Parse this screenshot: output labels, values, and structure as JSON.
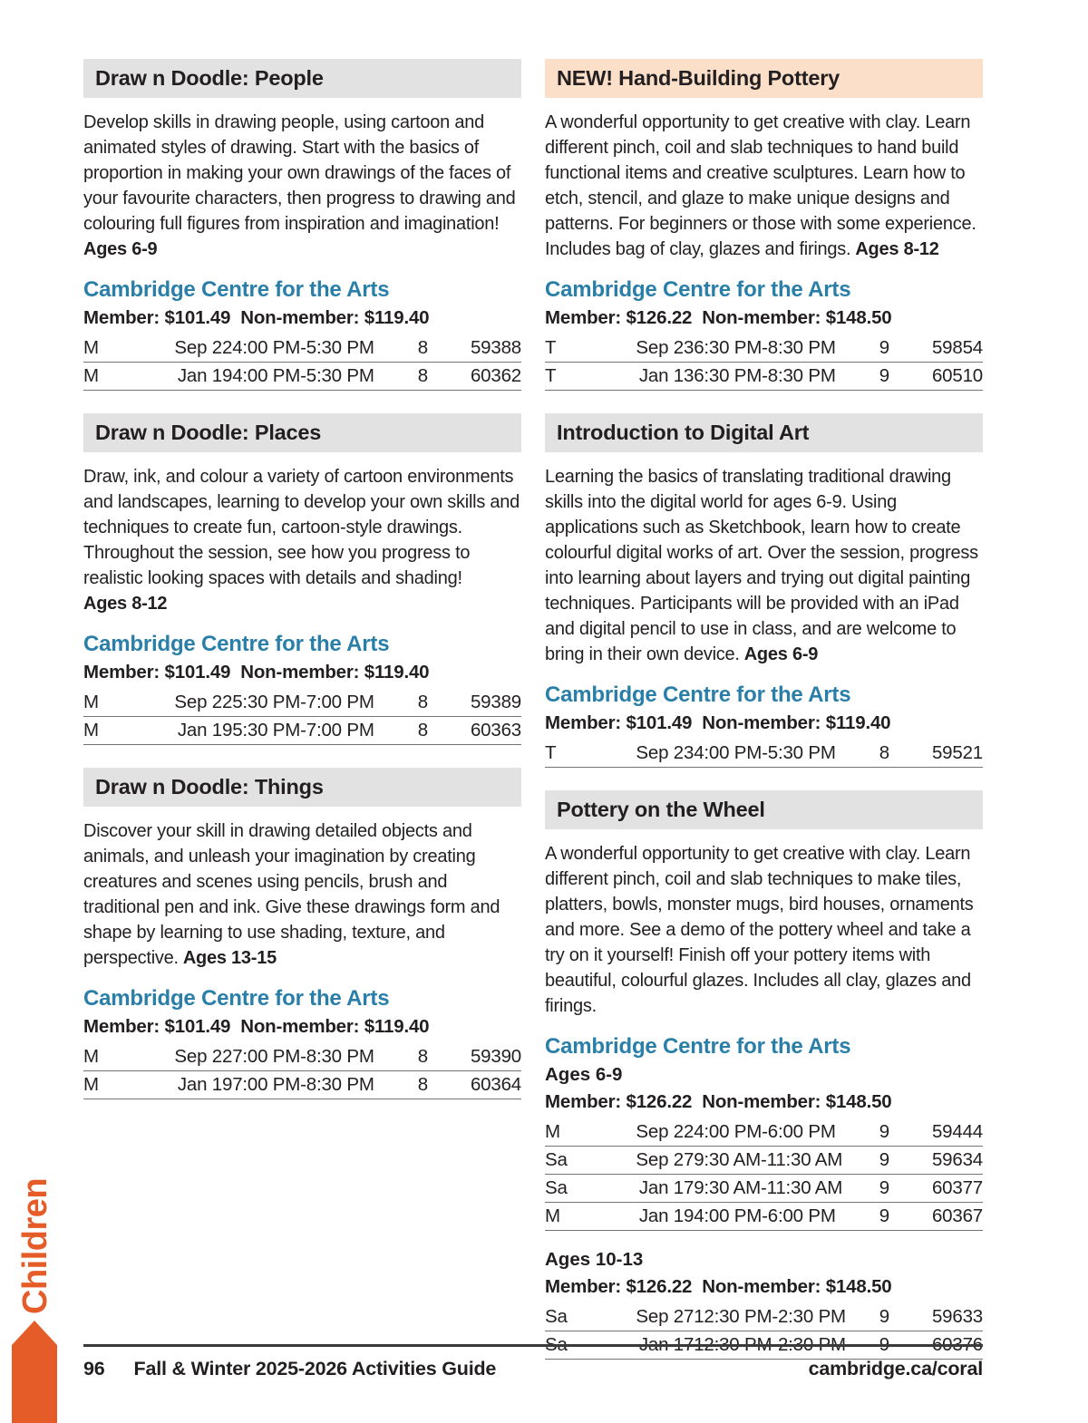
{
  "colors": {
    "orange": "#e55c28",
    "header_gray": "#e2e2e2",
    "header_peach": "#fbdfc9",
    "venue_blue": "#2a7fa9",
    "text": "#231f20"
  },
  "sidebar": {
    "label": "Children"
  },
  "footer": {
    "page_number": "96",
    "guide_title": "Fall & Winter 2025-2026 Activities Guide",
    "website": "cambridge.ca/coral"
  },
  "columns": {
    "left": [
      {
        "title": "Draw n Doodle: People",
        "highlight": false,
        "description": "Develop skills in drawing people, using cartoon and animated styles of drawing. Start with the basics of proportion in making your own drawings of the faces of your favourite characters, then progress to drawing and colouring full figures from inspiration and imagination!",
        "ages": "Ages 6-9",
        "ages_inline": false,
        "venue": "Cambridge Centre for the Arts",
        "groups": [
          {
            "ages_label": "",
            "pricing": "Member: $101.49  Non-member: $119.40",
            "rows": [
              [
                "M",
                "Sep 22",
                "4:00 PM-5:30 PM",
                "8",
                "59388"
              ],
              [
                "M",
                "Jan 19",
                "4:00 PM-5:30 PM",
                "8",
                "60362"
              ]
            ]
          }
        ]
      },
      {
        "title": "Draw n Doodle: Places",
        "highlight": false,
        "description": "Draw, ink, and colour a variety of cartoon environments and landscapes, learning to develop your own skills and techniques to create fun, cartoon-style drawings. Throughout the session, see how you progress to realistic looking spaces with details and shading!",
        "ages": "Ages 8-12",
        "ages_inline": false,
        "venue": "Cambridge Centre for the Arts",
        "groups": [
          {
            "ages_label": "",
            "pricing": "Member: $101.49  Non-member: $119.40",
            "rows": [
              [
                "M",
                "Sep 22",
                "5:30 PM-7:00 PM",
                "8",
                "59389"
              ],
              [
                "M",
                "Jan 19",
                "5:30 PM-7:00 PM",
                "8",
                "60363"
              ]
            ]
          }
        ]
      },
      {
        "title": "Draw n Doodle: Things",
        "highlight": false,
        "description": "Discover your skill in drawing detailed objects and animals, and unleash your imagination by creating creatures and scenes using pencils, brush and traditional pen and ink. Give these drawings form and shape by learning to use shading, texture, and perspective.",
        "ages": "Ages 13-15",
        "ages_inline": true,
        "venue": "Cambridge Centre for the Arts",
        "groups": [
          {
            "ages_label": "",
            "pricing": "Member: $101.49  Non-member: $119.40",
            "rows": [
              [
                "M",
                "Sep 22",
                "7:00 PM-8:30 PM",
                "8",
                "59390"
              ],
              [
                "M",
                "Jan 19",
                "7:00 PM-8:30 PM",
                "8",
                "60364"
              ]
            ]
          }
        ]
      }
    ],
    "right": [
      {
        "title": "NEW! Hand-Building Pottery",
        "highlight": true,
        "description": "A wonderful opportunity to get creative with clay. Learn different pinch, coil and slab techniques to hand build functional items and creative sculptures. Learn how to etch, stencil, and glaze to make unique designs and patterns. For beginners or those with some experience. Includes bag of clay, glazes and firings.",
        "ages": "Ages 8-12",
        "ages_inline": true,
        "venue": "Cambridge Centre for the Arts",
        "groups": [
          {
            "ages_label": "",
            "pricing": "Member: $126.22  Non-member: $148.50",
            "rows": [
              [
                "T",
                "Sep 23",
                "6:30 PM-8:30 PM",
                "9",
                "59854"
              ],
              [
                "T",
                "Jan 13",
                "6:30 PM-8:30 PM",
                "9",
                "60510"
              ]
            ]
          }
        ]
      },
      {
        "title": "Introduction to Digital Art",
        "highlight": false,
        "description": "Learning the basics of translating traditional drawing skills into the digital world for ages 6-9. Using applications such as Sketchbook, learn how to create colourful digital works of art. Over the session, progress into learning about layers and trying out digital painting techniques. Participants will be provided with an iPad and digital pencil to use in class, and are welcome to bring in their own device.",
        "ages": "Ages 6-9",
        "ages_inline": true,
        "venue": "Cambridge Centre for the Arts",
        "groups": [
          {
            "ages_label": "",
            "pricing": "Member: $101.49  Non-member: $119.40",
            "rows": [
              [
                "T",
                "Sep 23",
                "4:00 PM-5:30 PM",
                "8",
                "59521"
              ]
            ]
          }
        ]
      },
      {
        "title": "Pottery on the Wheel",
        "highlight": false,
        "description": "A wonderful opportunity to get creative with clay. Learn different pinch, coil and slab techniques to make tiles, platters, bowls, monster mugs, bird houses, ornaments and more. See a demo of the pottery wheel and take a try on it yourself! Finish off your pottery items with beautiful, colourful glazes. Includes all clay, glazes and firings.",
        "ages": "",
        "ages_inline": false,
        "venue": "Cambridge Centre for the Arts",
        "groups": [
          {
            "ages_label": "Ages 6-9",
            "pricing": "Member: $126.22  Non-member: $148.50",
            "rows": [
              [
                "M",
                "Sep 22",
                "4:00 PM-6:00 PM",
                "9",
                "59444"
              ],
              [
                "Sa",
                "Sep 27",
                "9:30 AM-11:30 AM",
                "9",
                "59634"
              ],
              [
                "Sa",
                "Jan 17",
                "9:30 AM-11:30 AM",
                "9",
                "60377"
              ],
              [
                "M",
                "Jan 19",
                "4:00 PM-6:00 PM",
                "9",
                "60367"
              ]
            ]
          },
          {
            "ages_label": "Ages 10-13",
            "pricing": "Member: $126.22  Non-member: $148.50",
            "rows": [
              [
                "Sa",
                "Sep 27",
                "12:30 PM-2:30 PM",
                "9",
                "59633"
              ],
              [
                "Sa",
                "Jan 17",
                "12:30 PM-2:30 PM",
                "9",
                "60376"
              ]
            ]
          }
        ]
      }
    ]
  }
}
